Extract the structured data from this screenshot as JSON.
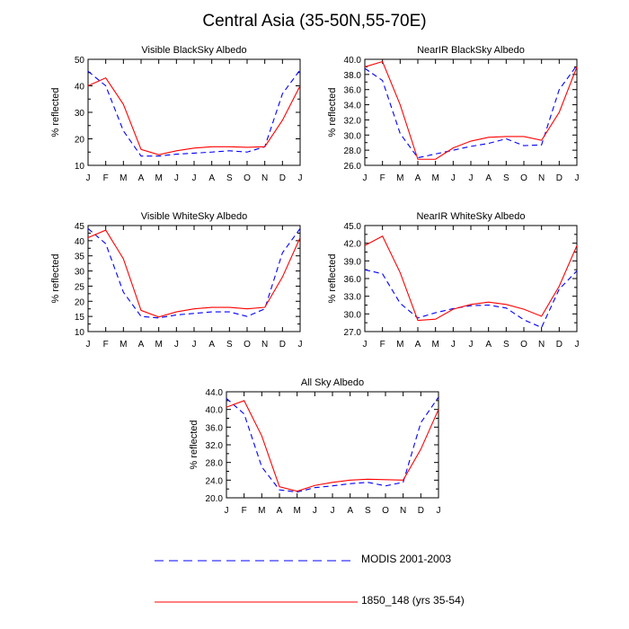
{
  "title": "Central Asia (35-50N,55-70E)",
  "months": [
    "J",
    "F",
    "M",
    "A",
    "M",
    "J",
    "J",
    "A",
    "S",
    "O",
    "N",
    "D",
    "J"
  ],
  "ylabel": "% reflected",
  "legend": [
    {
      "label": "MODIS 2001-2003",
      "color": "#0000ff",
      "dash": "dashed"
    },
    {
      "label": "1850_148 (yrs 35-54)",
      "color": "#ff0000",
      "dash": "solid"
    }
  ],
  "chart_data": [
    {
      "type": "line",
      "title": "Visible BlackSky Albedo",
      "ylabel": "% reflected",
      "ylim": [
        10,
        50
      ],
      "yticks": [
        "10",
        "20",
        "30",
        "40",
        "50"
      ],
      "series": [
        {
          "name": "MODIS 2001-2003",
          "values": [
            45.5,
            40.0,
            23.0,
            13.5,
            13.5,
            14.2,
            14.6,
            15.0,
            15.5,
            15.0,
            17.0,
            37.0,
            46.0
          ]
        },
        {
          "name": "1850_148 (yrs 35-54)",
          "values": [
            40.0,
            43.0,
            33.0,
            16.0,
            14.0,
            15.5,
            16.5,
            17.0,
            17.0,
            16.8,
            17.0,
            27.0,
            40.0
          ]
        }
      ]
    },
    {
      "type": "line",
      "title": "NearIR BlackSky Albedo",
      "ylabel": "% reflected",
      "ylim": [
        26,
        40
      ],
      "yticks": [
        "26.0",
        "28.0",
        "30.0",
        "32.0",
        "34.0",
        "36.0",
        "38.0",
        "40.0"
      ],
      "series": [
        {
          "name": "MODIS 2001-2003",
          "values": [
            38.8,
            37.2,
            30.2,
            27.0,
            27.5,
            28.0,
            28.5,
            28.9,
            29.5,
            28.6,
            28.7,
            36.0,
            39.2
          ]
        },
        {
          "name": "1850_148 (yrs 35-54)",
          "values": [
            39.0,
            39.7,
            34.0,
            26.8,
            26.8,
            28.3,
            29.2,
            29.7,
            29.8,
            29.8,
            29.3,
            33.0,
            39.0
          ]
        }
      ]
    },
    {
      "type": "line",
      "title": "Visible WhiteSky Albedo",
      "ylabel": "% reflected",
      "ylim": [
        10,
        45
      ],
      "yticks": [
        "10",
        "15",
        "20",
        "25",
        "30",
        "35",
        "40",
        "45"
      ],
      "series": [
        {
          "name": "MODIS 2001-2003",
          "values": [
            44.0,
            39.0,
            23.0,
            15.0,
            14.5,
            15.5,
            16.0,
            16.5,
            16.5,
            15.0,
            17.5,
            36.0,
            44.0
          ]
        },
        {
          "name": "1850_148 (yrs 35-54)",
          "values": [
            41.0,
            43.5,
            34.0,
            17.0,
            14.8,
            16.5,
            17.5,
            18.0,
            18.0,
            17.5,
            18.0,
            28.0,
            41.0
          ]
        }
      ]
    },
    {
      "type": "line",
      "title": "NearIR WhiteSky Albedo",
      "ylabel": "% reflected",
      "ylim": [
        27,
        45
      ],
      "yticks": [
        "27.0",
        "30.0",
        "33.0",
        "36.0",
        "39.0",
        "42.0",
        "45.0"
      ],
      "series": [
        {
          "name": "MODIS 2001-2003",
          "values": [
            37.5,
            36.8,
            31.8,
            29.3,
            30.2,
            30.9,
            31.4,
            31.5,
            31.0,
            29.0,
            27.7,
            34.2,
            37.3
          ]
        },
        {
          "name": "1850_148 (yrs 35-54)",
          "values": [
            41.6,
            43.2,
            37.0,
            28.9,
            29.1,
            30.8,
            31.6,
            32.0,
            31.6,
            30.8,
            29.6,
            34.7,
            41.6
          ]
        }
      ]
    },
    {
      "type": "line",
      "title": "All Sky Albedo",
      "ylabel": "% reflected",
      "ylim": [
        20,
        44
      ],
      "yticks": [
        "20.0",
        "24.0",
        "28.0",
        "32.0",
        "36.0",
        "40.0",
        "44.0"
      ],
      "series": [
        {
          "name": "MODIS 2001-2003",
          "values": [
            42.5,
            39.0,
            27.0,
            21.8,
            21.3,
            22.3,
            22.7,
            23.2,
            23.5,
            22.7,
            23.5,
            37.0,
            42.8
          ]
        },
        {
          "name": "1850_148 (yrs 35-54)",
          "values": [
            40.5,
            42.0,
            34.0,
            22.5,
            21.5,
            22.8,
            23.5,
            24.0,
            24.2,
            24.1,
            24.0,
            31.0,
            40.0
          ]
        }
      ]
    }
  ]
}
